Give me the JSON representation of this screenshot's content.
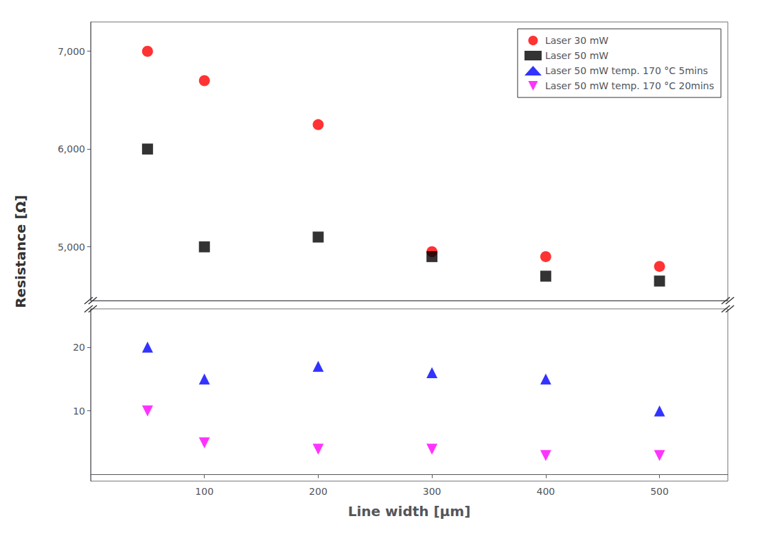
{
  "chart_data": {
    "type": "scatter",
    "xlabel": "Line width [μm]",
    "ylabel": "Resistance [Ω]",
    "x": [
      50,
      100,
      200,
      300,
      400,
      500
    ],
    "series": [
      {
        "name": "Laser 30 mW",
        "color": "red",
        "marker": "circle",
        "values": [
          7000,
          6700,
          6250,
          4950,
          4900,
          4800
        ]
      },
      {
        "name": "Laser 50 mW",
        "color": "black",
        "marker": "square",
        "values": [
          6000,
          5000,
          5100,
          4900,
          4700,
          4650
        ]
      },
      {
        "name": "Laser 50 mW temp. 170 °C 5mins",
        "color": "blue",
        "marker": "triangle",
        "axis": "y2",
        "values": [
          20,
          15,
          17,
          16,
          15,
          10
        ]
      },
      {
        "name": "Laser 50 mW temp. 170 °C 20mins",
        "color": "magenta",
        "marker": "triangle-down",
        "axis": "y2",
        "values": [
          10,
          5,
          4,
          4,
          3,
          3
        ]
      }
    ],
    "xlim": [
      0,
      560
    ],
    "xticks": [
      100,
      200,
      300,
      400,
      500
    ],
    "ylim": [
      4450,
      7300
    ],
    "yticks": [
      5000,
      6000,
      7000
    ],
    "y2lim": [
      -1,
      26
    ],
    "y2ticks": [
      10,
      20
    ],
    "grid": false,
    "legend": "upper right"
  }
}
